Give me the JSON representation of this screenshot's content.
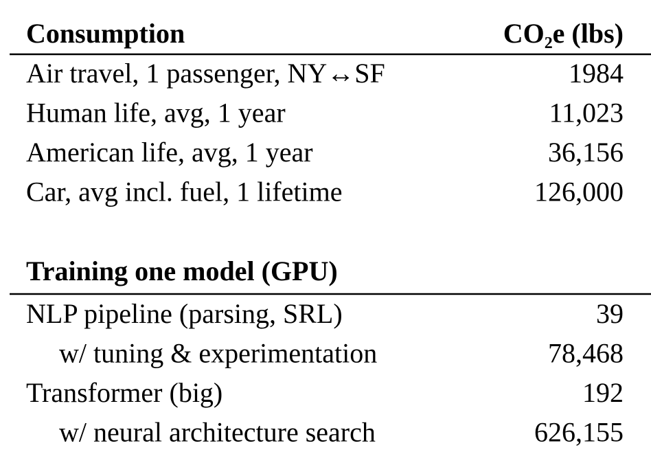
{
  "table": {
    "header": [
      "Consumption",
      "CO₂e (lbs)"
    ],
    "sections": [
      {
        "rows": [
          {
            "label": "Air travel, 1 passenger, NY↔SF",
            "value": "1984"
          },
          {
            "label": "Human life, avg, 1 year",
            "value": "11,023"
          },
          {
            "label": "American life, avg, 1 year",
            "value": "36,156"
          },
          {
            "label": "Car, avg incl. fuel, 1 lifetime",
            "value": "126,000"
          }
        ]
      },
      {
        "title": "Training one model (GPU)",
        "rows": [
          {
            "label": "NLP pipeline (parsing, SRL)",
            "value": "39",
            "sub": [
              {
                "label": "w/ tuning & experimentation",
                "value": "78,468"
              }
            ]
          },
          {
            "label": "Transformer (big)",
            "value": "192",
            "sub": [
              {
                "label": "w/ neural architecture search",
                "value": "626,155"
              }
            ]
          }
        ]
      }
    ]
  }
}
